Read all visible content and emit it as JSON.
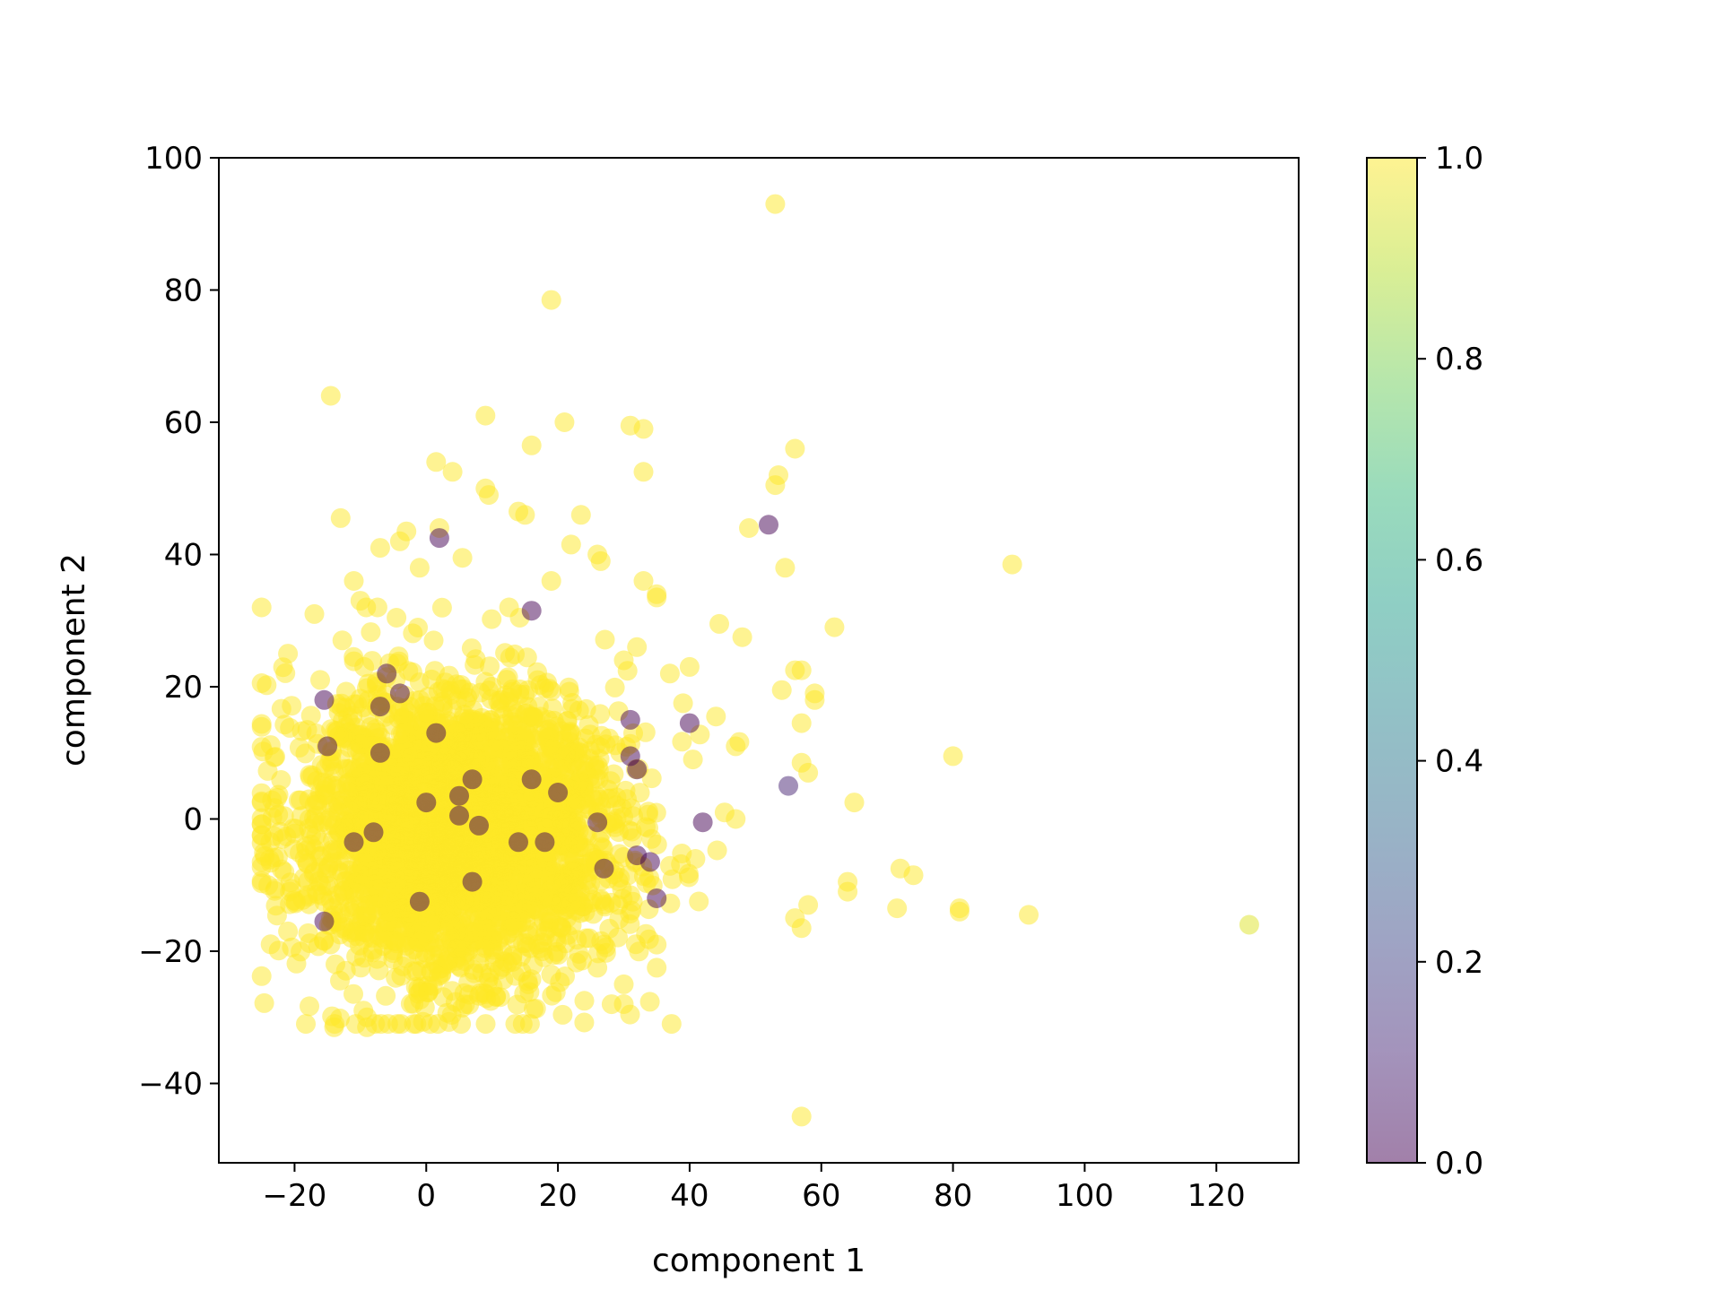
{
  "chart_data": {
    "type": "scatter",
    "title": "",
    "xlabel": "component 1",
    "ylabel": "component 2",
    "xlim": [
      -31.5,
      132.5
    ],
    "ylim": [
      -52,
      100
    ],
    "xticks": [
      -20,
      0,
      20,
      40,
      60,
      80,
      100,
      120
    ],
    "yticks": [
      -40,
      -20,
      0,
      20,
      40,
      60,
      80,
      100
    ],
    "grid": false,
    "legend": "none",
    "marker_alpha": 0.5,
    "colormap": {
      "name": "viridis",
      "range": [
        0.0,
        1.0
      ],
      "ticks": [
        0.0,
        0.2,
        0.4,
        0.6,
        0.8,
        1.0
      ],
      "tick_labels": [
        "0.0",
        "0.2",
        "0.4",
        "0.6",
        "0.8",
        "1.0"
      ],
      "stops": [
        "#440154",
        "#482878",
        "#3e4989",
        "#31688e",
        "#26828e",
        "#1f9e89",
        "#35b779",
        "#6ece58",
        "#b5de2b",
        "#fde725"
      ]
    },
    "cluster": {
      "x_mean": 5,
      "x_sd": 12,
      "y_mean": -2,
      "y_sd": 11,
      "count": 3200,
      "value": 1.0
    },
    "points": [
      {
        "x": 53,
        "y": 93,
        "value": 1.0
      },
      {
        "x": 19,
        "y": 78.5,
        "value": 1.0
      },
      {
        "x": -14.5,
        "y": 64,
        "value": 1.0
      },
      {
        "x": 9,
        "y": 61,
        "value": 1.0
      },
      {
        "x": 21,
        "y": 60,
        "value": 1.0
      },
      {
        "x": 31,
        "y": 59.5,
        "value": 1.0
      },
      {
        "x": 33,
        "y": 59,
        "value": 1.0
      },
      {
        "x": 16,
        "y": 56.5,
        "value": 1.0
      },
      {
        "x": 56,
        "y": 56,
        "value": 1.0
      },
      {
        "x": 1.5,
        "y": 54,
        "value": 1.0
      },
      {
        "x": 4,
        "y": 52.5,
        "value": 1.0
      },
      {
        "x": 33,
        "y": 52.5,
        "value": 1.0
      },
      {
        "x": 53.5,
        "y": 52,
        "value": 1.0
      },
      {
        "x": 53,
        "y": 50.5,
        "value": 1.0
      },
      {
        "x": 9,
        "y": 50,
        "value": 1.0
      },
      {
        "x": 9.5,
        "y": 49,
        "value": 1.0
      },
      {
        "x": 14,
        "y": 46.5,
        "value": 1.0
      },
      {
        "x": 23.5,
        "y": 46,
        "value": 1.0
      },
      {
        "x": 15,
        "y": 46,
        "value": 1.0
      },
      {
        "x": -13,
        "y": 45.5,
        "value": 1.0
      },
      {
        "x": 52,
        "y": 44.5,
        "value": 0.0
      },
      {
        "x": 49,
        "y": 44,
        "value": 1.0
      },
      {
        "x": -3,
        "y": 43.5,
        "value": 1.0
      },
      {
        "x": 2,
        "y": 44,
        "value": 1.0
      },
      {
        "x": 2,
        "y": 42.5,
        "value": 0.0
      },
      {
        "x": -4,
        "y": 42,
        "value": 1.0
      },
      {
        "x": 22,
        "y": 41.5,
        "value": 1.0
      },
      {
        "x": -7,
        "y": 41,
        "value": 1.0
      },
      {
        "x": 26,
        "y": 40,
        "value": 1.0
      },
      {
        "x": 5.5,
        "y": 39.5,
        "value": 1.0
      },
      {
        "x": 26.5,
        "y": 39,
        "value": 1.0
      },
      {
        "x": 89,
        "y": 38.5,
        "value": 1.0
      },
      {
        "x": 54.5,
        "y": 38,
        "value": 1.0
      },
      {
        "x": -1,
        "y": 38,
        "value": 1.0
      },
      {
        "x": 19,
        "y": 36,
        "value": 1.0
      },
      {
        "x": 33,
        "y": 36,
        "value": 1.0
      },
      {
        "x": -11,
        "y": 36,
        "value": 1.0
      },
      {
        "x": 35,
        "y": 34,
        "value": 1.0
      },
      {
        "x": 35,
        "y": 33.5,
        "value": 1.0
      },
      {
        "x": -10,
        "y": 33,
        "value": 1.0
      },
      {
        "x": 16,
        "y": 31.5,
        "value": 0.0
      },
      {
        "x": -17,
        "y": 31,
        "value": 1.0
      },
      {
        "x": 44.5,
        "y": 29.5,
        "value": 1.0
      },
      {
        "x": 62,
        "y": 29,
        "value": 1.0
      },
      {
        "x": 48,
        "y": 27.5,
        "value": 1.0
      },
      {
        "x": 32,
        "y": 26,
        "value": 1.0
      },
      {
        "x": -21,
        "y": 25,
        "value": 1.0
      },
      {
        "x": 30,
        "y": 24,
        "value": 1.0
      },
      {
        "x": 40,
        "y": 23,
        "value": 1.0
      },
      {
        "x": 56,
        "y": 22.5,
        "value": 1.0
      },
      {
        "x": 57,
        "y": 22.5,
        "value": 1.0
      },
      {
        "x": 37,
        "y": 22,
        "value": 1.0
      },
      {
        "x": -6,
        "y": 22,
        "value": 0.0
      },
      {
        "x": 54,
        "y": 19.5,
        "value": 1.0
      },
      {
        "x": 59,
        "y": 19,
        "value": 1.0
      },
      {
        "x": 59,
        "y": 18,
        "value": 1.0
      },
      {
        "x": -15.5,
        "y": 18,
        "value": 0.0
      },
      {
        "x": 39,
        "y": 17.5,
        "value": 1.0
      },
      {
        "x": -7,
        "y": 17,
        "value": 0.0
      },
      {
        "x": -4,
        "y": 19,
        "value": 0.0
      },
      {
        "x": 44,
        "y": 15.5,
        "value": 1.0
      },
      {
        "x": 31,
        "y": 15,
        "value": 0.0
      },
      {
        "x": 57,
        "y": 14.5,
        "value": 1.0
      },
      {
        "x": 40,
        "y": 14.5,
        "value": 0.0
      },
      {
        "x": 1.5,
        "y": 13,
        "value": 0.0
      },
      {
        "x": 47,
        "y": 11,
        "value": 1.0
      },
      {
        "x": -15,
        "y": 11,
        "value": 0.0
      },
      {
        "x": -7,
        "y": 10,
        "value": 0.0
      },
      {
        "x": 80,
        "y": 9.5,
        "value": 1.0
      },
      {
        "x": 31,
        "y": 9.5,
        "value": 0.0
      },
      {
        "x": 40.5,
        "y": 9,
        "value": 1.0
      },
      {
        "x": 57,
        "y": 8.5,
        "value": 1.0
      },
      {
        "x": 32,
        "y": 7.5,
        "value": 0.0
      },
      {
        "x": 58,
        "y": 7,
        "value": 1.0
      },
      {
        "x": 16,
        "y": 6,
        "value": 0.0
      },
      {
        "x": 7,
        "y": 6,
        "value": 0.0
      },
      {
        "x": 55,
        "y": 5,
        "value": 0.1
      },
      {
        "x": 20,
        "y": 4,
        "value": 0.0
      },
      {
        "x": 5,
        "y": 3.5,
        "value": 0.0
      },
      {
        "x": 0,
        "y": 2.5,
        "value": 0.0
      },
      {
        "x": 65,
        "y": 2.5,
        "value": 1.0
      },
      {
        "x": -25,
        "y": 2.5,
        "value": 1.0
      },
      {
        "x": 5,
        "y": 0.5,
        "value": 0.0
      },
      {
        "x": 47,
        "y": 0,
        "value": 1.0
      },
      {
        "x": 42,
        "y": -0.5,
        "value": 0.0
      },
      {
        "x": 26,
        "y": -0.5,
        "value": 0.0
      },
      {
        "x": 8,
        "y": -1,
        "value": 0.0
      },
      {
        "x": -8,
        "y": -2,
        "value": 0.0
      },
      {
        "x": 18,
        "y": -3.5,
        "value": 0.0
      },
      {
        "x": -11,
        "y": -3.5,
        "value": 0.0
      },
      {
        "x": 14,
        "y": -3.5,
        "value": 0.0
      },
      {
        "x": 32,
        "y": -5.5,
        "value": 0.0
      },
      {
        "x": 34,
        "y": -6.5,
        "value": 0.0
      },
      {
        "x": 27,
        "y": -7.5,
        "value": 0.0
      },
      {
        "x": 72,
        "y": -7.5,
        "value": 1.0
      },
      {
        "x": 74,
        "y": -8.5,
        "value": 1.0
      },
      {
        "x": 64,
        "y": -9.5,
        "value": 1.0
      },
      {
        "x": 7,
        "y": -9.5,
        "value": 0.0
      },
      {
        "x": -24,
        "y": -10,
        "value": 1.0
      },
      {
        "x": 64,
        "y": -11,
        "value": 1.0
      },
      {
        "x": 35,
        "y": -12,
        "value": 0.0
      },
      {
        "x": -1,
        "y": -12.5,
        "value": 0.0
      },
      {
        "x": 58,
        "y": -13,
        "value": 1.0
      },
      {
        "x": 71.5,
        "y": -13.5,
        "value": 1.0
      },
      {
        "x": 81,
        "y": -13.5,
        "value": 1.0
      },
      {
        "x": 81,
        "y": -14,
        "value": 1.0
      },
      {
        "x": 91.5,
        "y": -14.5,
        "value": 1.0
      },
      {
        "x": 56,
        "y": -15,
        "value": 1.0
      },
      {
        "x": -15.5,
        "y": -15.5,
        "value": 0.0
      },
      {
        "x": 125,
        "y": -16,
        "value": 0.95
      },
      {
        "x": 57,
        "y": -16.5,
        "value": 1.0
      },
      {
        "x": -21,
        "y": -17,
        "value": 1.0
      },
      {
        "x": 27,
        "y": -19,
        "value": 1.0
      },
      {
        "x": 35,
        "y": -19,
        "value": 1.0
      },
      {
        "x": 26,
        "y": -22.5,
        "value": 1.0
      },
      {
        "x": 35,
        "y": -22.5,
        "value": 1.0
      },
      {
        "x": 30,
        "y": -25,
        "value": 1.0
      },
      {
        "x": 9,
        "y": -26.5,
        "value": 1.0
      },
      {
        "x": 24,
        "y": -27.5,
        "value": 1.0
      },
      {
        "x": 30,
        "y": -28,
        "value": 1.0
      },
      {
        "x": -9,
        "y": -30,
        "value": 1.0
      },
      {
        "x": -14,
        "y": -31.5,
        "value": 1.0
      },
      {
        "x": -9,
        "y": -31.5,
        "value": 1.0
      },
      {
        "x": 57,
        "y": -45,
        "value": 1.0
      }
    ]
  }
}
